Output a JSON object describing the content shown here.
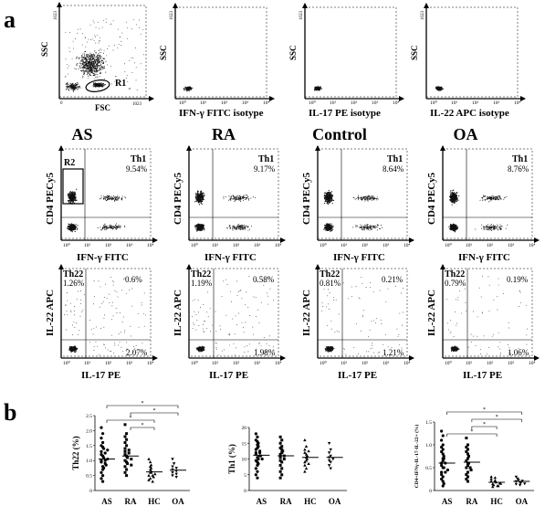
{
  "panel_letters": {
    "a": "a",
    "b": "b"
  },
  "isotype_row": {
    "gate": "R1",
    "plots": [
      {
        "xlabel": "FSC",
        "ylabel": "SSC",
        "xtick_max": "1023",
        "ytick_max": "1023",
        "xtick_min": "0"
      },
      {
        "xlabel": "IFN-γ FITC isotype",
        "ylabel": "SSC",
        "ytick_max": "1023"
      },
      {
        "xlabel": "IL-17 PE isotype",
        "ylabel": "SSC",
        "ytick_max": "1023"
      },
      {
        "xlabel": "IL-22 APC isotype",
        "ylabel": "SSC",
        "ytick_max": "1023"
      }
    ]
  },
  "group_titles": [
    "AS",
    "RA",
    "Control",
    "OA"
  ],
  "log_ticks": [
    "10⁰",
    "10¹",
    "10²",
    "10³",
    "10⁴"
  ],
  "th1_row": {
    "xlabel": "IFN-γ FITC",
    "ylabel": "CD4 PECy5",
    "gate": "R2",
    "label": "Th1",
    "percents": [
      "9.54%",
      "9.17%",
      "8.64%",
      "8.76%"
    ]
  },
  "il22_row": {
    "xlabel": "IL-17 PE",
    "ylabel": "IL-22 APC",
    "label": "Th22",
    "quadrants": [
      {
        "ul": "1.26%",
        "ur": "0.6%",
        "lr": "2.07%"
      },
      {
        "ul": "1.19%",
        "ur": "0.58%",
        "lr": "1.98%"
      },
      {
        "ul": "0.81%",
        "ur": "0.21%",
        "lr": "1.21%"
      },
      {
        "ul": "0.79%",
        "ur": "0.19%",
        "lr": "1.06%"
      }
    ]
  },
  "significance_mark": "*",
  "chart_data": [
    {
      "type": "scatter",
      "ylabel": "Th22 (%)",
      "categories": [
        "AS",
        "RA",
        "HC",
        "OA"
      ],
      "ylim": [
        0,
        2.5
      ],
      "yticks": [
        "0",
        "0.5",
        "1.0",
        "1.5",
        "2.0",
        "2.5"
      ],
      "means": [
        1.05,
        1.15,
        0.62,
        0.68
      ],
      "series": [
        {
          "marker": "circle",
          "values": [
            2.1,
            1.9,
            1.75,
            1.6,
            1.5,
            1.45,
            1.4,
            1.35,
            1.3,
            1.25,
            1.2,
            1.15,
            1.1,
            1.05,
            1.0,
            1.0,
            0.95,
            0.9,
            0.85,
            0.8,
            0.75,
            0.7,
            0.6,
            0.5,
            0.4,
            0.3
          ]
        },
        {
          "marker": "square",
          "values": [
            2.2,
            1.9,
            1.8,
            1.7,
            1.6,
            1.5,
            1.4,
            1.35,
            1.3,
            1.25,
            1.2,
            1.15,
            1.1,
            1.05,
            1.0,
            0.95,
            0.9,
            0.85,
            0.8,
            0.7,
            0.6,
            0.5
          ]
        },
        {
          "marker": "triangle",
          "values": [
            1.05,
            0.95,
            0.85,
            0.8,
            0.75,
            0.7,
            0.65,
            0.6,
            0.6,
            0.55,
            0.5,
            0.5,
            0.45,
            0.4,
            0.35,
            0.3
          ]
        },
        {
          "marker": "triangle-down",
          "values": [
            1.05,
            0.9,
            0.8,
            0.75,
            0.7,
            0.65,
            0.6,
            0.55,
            0.5,
            0.45
          ]
        }
      ],
      "brackets": [
        [
          0,
          3
        ],
        [
          1,
          3
        ],
        [
          0,
          2
        ],
        [
          1,
          2
        ]
      ]
    },
    {
      "type": "scatter",
      "ylabel": "Th1 (%)",
      "categories": [
        "AS",
        "RA",
        "HC",
        "OA"
      ],
      "ylim": [
        0,
        20
      ],
      "yticks": [
        "0",
        "5",
        "10",
        "15",
        "20"
      ],
      "means": [
        11.2,
        11.0,
        10.5,
        10.5
      ],
      "series": [
        {
          "marker": "circle",
          "values": [
            18,
            17,
            16,
            15.5,
            15,
            14.5,
            14,
            13.5,
            13,
            12.5,
            12,
            12,
            11.5,
            11,
            11,
            10.5,
            10,
            10,
            9.5,
            9,
            8.5,
            8,
            7,
            6,
            5,
            4
          ]
        },
        {
          "marker": "square",
          "values": [
            17,
            16,
            15,
            14,
            13.5,
            13,
            12.5,
            12,
            11.5,
            11,
            10.5,
            10,
            9.5,
            9,
            8,
            7,
            6,
            5,
            4
          ]
        },
        {
          "marker": "triangle",
          "values": [
            16,
            14,
            13,
            12.5,
            12,
            11.5,
            11,
            10.5,
            10,
            9.5,
            9,
            8.5,
            8,
            7,
            6
          ]
        },
        {
          "marker": "triangle-down",
          "values": [
            15,
            13,
            12,
            11,
            10.5,
            10,
            9.5,
            9,
            8,
            7
          ]
        }
      ],
      "brackets": []
    },
    {
      "type": "scatter",
      "ylabel": "CD4+IFNγ-IL-17-IL-22+ (%)",
      "categories": [
        "AS",
        "RA",
        "HC",
        "OA"
      ],
      "ylim": [
        0,
        1.5
      ],
      "yticks": [
        "0",
        "0.5",
        "1.0",
        "1.5"
      ],
      "means": [
        0.6,
        0.62,
        0.18,
        0.2
      ],
      "series": [
        {
          "marker": "circle",
          "values": [
            1.3,
            1.2,
            1.1,
            1.0,
            0.95,
            0.9,
            0.85,
            0.8,
            0.75,
            0.7,
            0.7,
            0.65,
            0.6,
            0.6,
            0.55,
            0.5,
            0.5,
            0.45,
            0.4,
            0.4,
            0.35,
            0.3,
            0.25,
            0.2,
            0.15,
            0.1
          ]
        },
        {
          "marker": "square",
          "values": [
            1.15,
            1.0,
            0.95,
            0.9,
            0.85,
            0.8,
            0.75,
            0.7,
            0.65,
            0.6,
            0.6,
            0.55,
            0.5,
            0.5,
            0.45,
            0.4,
            0.35,
            0.3,
            0.25,
            0.2
          ]
        },
        {
          "marker": "triangle",
          "values": [
            0.3,
            0.28,
            0.25,
            0.22,
            0.2,
            0.2,
            0.18,
            0.16,
            0.15,
            0.14,
            0.12,
            0.1,
            0.1,
            0.08
          ]
        },
        {
          "marker": "triangle-down",
          "values": [
            0.3,
            0.26,
            0.23,
            0.21,
            0.2,
            0.18,
            0.17,
            0.15,
            0.14,
            0.12
          ]
        }
      ],
      "brackets": [
        [
          0,
          3
        ],
        [
          1,
          3
        ],
        [
          1,
          2
        ],
        [
          0,
          2
        ]
      ]
    }
  ]
}
